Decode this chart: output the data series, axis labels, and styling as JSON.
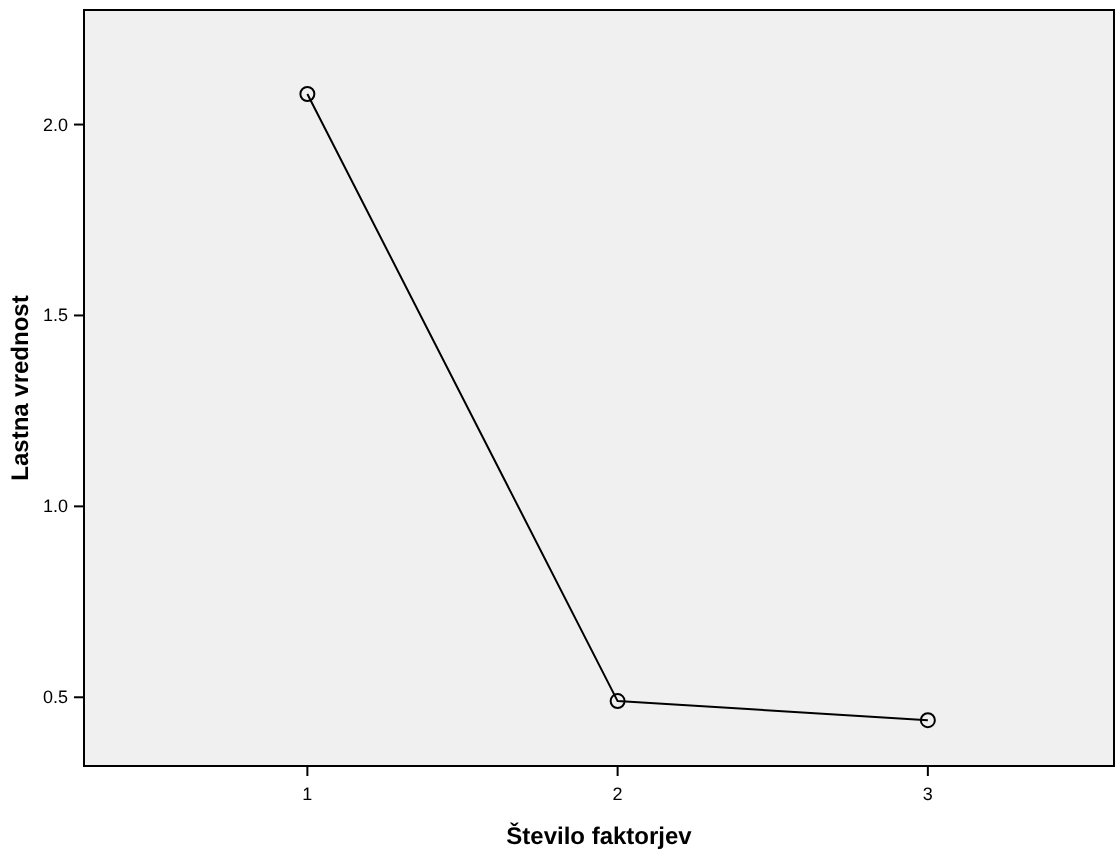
{
  "chart_data": {
    "type": "line",
    "xlabel": "Število faktorjev",
    "ylabel": "Lastna vrednost",
    "x": [
      1,
      2,
      3
    ],
    "series": [
      {
        "color": "#000000",
        "values": [
          2.08,
          0.49,
          0.44
        ]
      }
    ],
    "xlim": [
      0.28,
      3.6
    ],
    "xticks": [
      1,
      2,
      3
    ],
    "ylim": [
      0.32,
      2.3
    ],
    "yticks": [
      {
        "value": 0.5,
        "label": "0.5"
      },
      {
        "value": 1,
        "label": "1.0"
      },
      {
        "value": 1.5,
        "label": "1.5"
      },
      {
        "value": 2,
        "label": "2.0"
      }
    ],
    "marker": "circle",
    "line_style": "solid"
  }
}
